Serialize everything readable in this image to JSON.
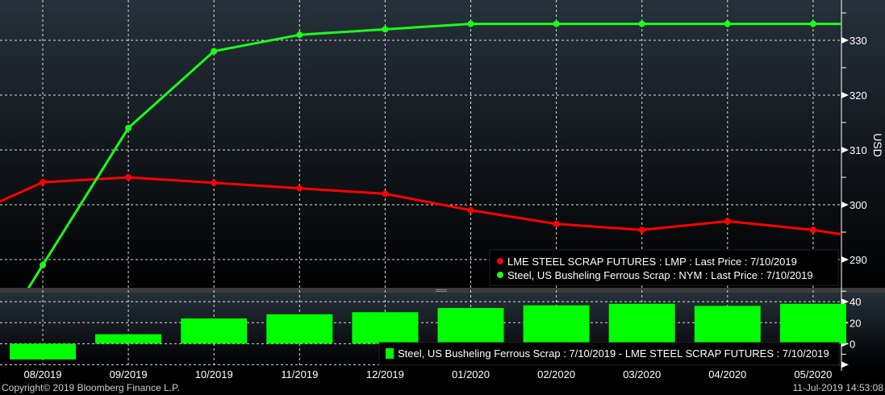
{
  "chart_data": [
    {
      "type": "line",
      "categories": [
        "08/2019",
        "09/2019",
        "10/2019",
        "11/2019",
        "12/2019",
        "01/2020",
        "02/2020",
        "03/2020",
        "04/2020",
        "05/2020"
      ],
      "ylabel": "USD",
      "ylim": [
        284.85,
        337.35
      ],
      "yticks": [
        290,
        300,
        310,
        320,
        330
      ],
      "grid": true,
      "legend_position": "bottom-right",
      "series": [
        {
          "name": "LME STEEL SCRAP FUTURES : LMP : Last Price : 7/10/2019",
          "color": "#ff0000",
          "values": [
            304.1,
            305,
            304,
            303,
            302,
            299,
            296.5,
            295.4,
            297,
            295.4
          ],
          "edge_left": 300.6,
          "edge_right": 294.6
        },
        {
          "name": "Steel, US Busheling Ferrous Scrap : NYM : Last Price : 7/10/2019",
          "color": "#19ff19",
          "values": [
            289,
            314,
            328,
            331,
            332,
            333,
            333,
            333,
            333,
            333
          ],
          "edge_left": 276.4,
          "edge_right": 333
        }
      ]
    },
    {
      "type": "bar",
      "categories": [
        "08/2019",
        "09/2019",
        "10/2019",
        "11/2019",
        "12/2019",
        "01/2020",
        "02/2020",
        "03/2020",
        "04/2020",
        "05/2020"
      ],
      "ylim": [
        -22,
        48.6
      ],
      "yticks": [
        0,
        20,
        40
      ],
      "legend_position": "bottom-right",
      "series": [
        {
          "name": "Steel, US Busheling Ferrous Scrap : 7/10/2019 - LME STEEL SCRAP FUTURES : 7/10/2019",
          "color": "#00ff00",
          "values": [
            -15,
            9,
            24,
            28,
            30,
            34,
            36.5,
            38,
            36,
            38
          ]
        }
      ]
    }
  ],
  "footer": {
    "copyright": "Copyright© 2019 Bloomberg Finance L.P.",
    "timestamp": "11-Jul-2019 14:53:08"
  }
}
